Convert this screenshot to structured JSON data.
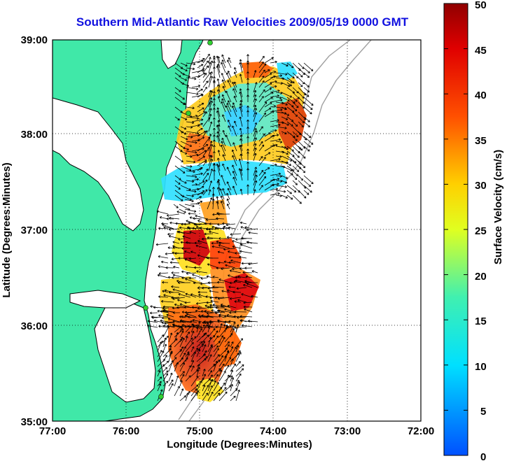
{
  "title": "Southern Mid-Atlantic Raw Velocities 2009/05/19 0000 GMT",
  "map": {
    "xlabel": "Longitude (Degrees:Minutes)",
    "ylabel": "Latitude (Degrees:Minutes)",
    "x_ticks": [
      "77:00",
      "76:00",
      "75:00",
      "74:00",
      "73:00",
      "72:00"
    ],
    "y_ticks": [
      "39:00",
      "38:00",
      "37:00",
      "36:00",
      "35:00"
    ],
    "lon_range": [
      -77,
      -72
    ],
    "lat_range": [
      35,
      39
    ],
    "grid": true
  },
  "colorbar": {
    "label": "Surface Velocity (cm/s)",
    "ticks": [
      "50",
      "45",
      "40",
      "35",
      "30",
      "25",
      "20",
      "15",
      "10",
      "5",
      "0"
    ],
    "range": [
      0,
      50
    ]
  },
  "colors": {
    "land": "#40e8a8",
    "coast": "#000000",
    "ocean": "#ffffff",
    "title": "#1010e0",
    "station": "#30d030"
  }
}
